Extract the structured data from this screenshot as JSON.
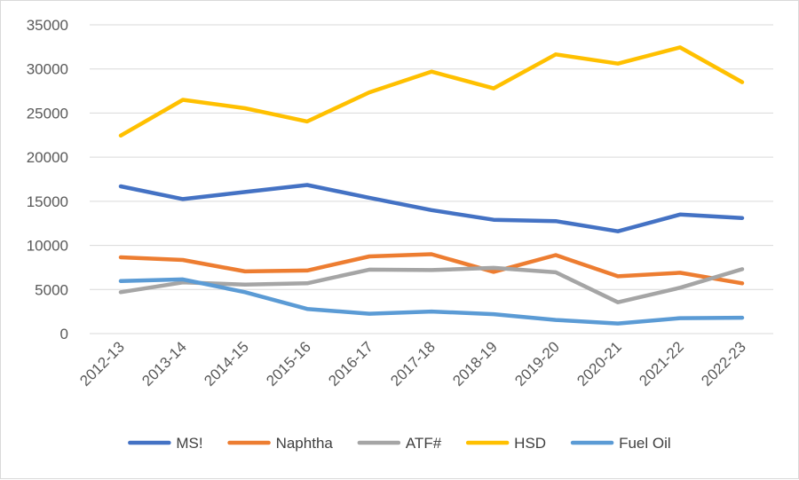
{
  "chart_data": {
    "type": "line",
    "title": "",
    "xlabel": "",
    "ylabel": "",
    "ylim": [
      0,
      35000
    ],
    "yticks": [
      0,
      5000,
      10000,
      15000,
      20000,
      25000,
      30000,
      35000
    ],
    "grid": true,
    "legend_position": "bottom",
    "categories": [
      "2012-13",
      "2013-14",
      "2014-15",
      "2015-16",
      "2016-17",
      "2017-18",
      "2018-19",
      "2019-20",
      "2020-21",
      "2021-22",
      "2022-23"
    ],
    "series": [
      {
        "name": "MS!",
        "color": "#4472c4",
        "values": [
          16700,
          15250,
          16050,
          16850,
          15400,
          14000,
          12900,
          12750,
          11600,
          13500,
          13100
        ]
      },
      {
        "name": "Naphtha",
        "color": "#ed7d31",
        "values": [
          8650,
          8350,
          7050,
          7150,
          8750,
          9000,
          7000,
          8900,
          6500,
          6900,
          5700
        ]
      },
      {
        "name": "ATF#",
        "color": "#a5a5a5",
        "values": [
          4700,
          5800,
          5550,
          5700,
          7250,
          7200,
          7450,
          6950,
          3550,
          5200,
          7300
        ]
      },
      {
        "name": "HSD",
        "color": "#ffc000",
        "values": [
          22450,
          26500,
          25550,
          24050,
          27350,
          29700,
          27800,
          31650,
          30600,
          32450,
          28500
        ]
      },
      {
        "name": "Fuel Oil",
        "color": "#5b9bd5",
        "values": [
          5950,
          6150,
          4700,
          2800,
          2250,
          2500,
          2200,
          1550,
          1150,
          1750,
          1800
        ]
      }
    ]
  }
}
